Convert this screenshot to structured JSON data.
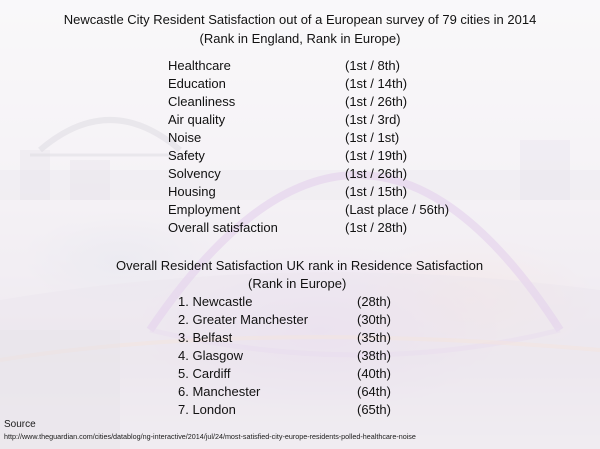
{
  "title": {
    "line1": "Newcastle City Resident Satisfaction out of a European survey of 79 cities in 2014",
    "line2": "(Rank in England, Rank in Europe)"
  },
  "metrics": [
    {
      "label": "Healthcare",
      "rank": "(1st / 8th)"
    },
    {
      "label": "Education",
      "rank": "(1st / 14th)"
    },
    {
      "label": "Cleanliness",
      "rank": "(1st / 26th)"
    },
    {
      "label": "Air quality",
      "rank": "(1st / 3rd)"
    },
    {
      "label": "Noise",
      "rank": "(1st / 1st)"
    },
    {
      "label": "Safety",
      "rank": "(1st / 19th)"
    },
    {
      "label": "Solvency",
      "rank": "(1st / 26th)"
    },
    {
      "label": "Housing",
      "rank": "(1st / 15th)"
    },
    {
      "label": "Employment",
      "rank": "(Last place / 56th)"
    },
    {
      "label": "Overall satisfaction",
      "rank": "(1st / 28th)"
    }
  ],
  "uk_section": {
    "title": "Overall Resident Satisfaction UK rank in Residence Satisfaction",
    "subtitle": "(Rank in Europe)",
    "cities": [
      {
        "label": "1. Newcastle",
        "rank": "(28th)"
      },
      {
        "label": "2. Greater Manchester",
        "rank": "(30th)"
      },
      {
        "label": "3. Belfast",
        "rank": "(35th)"
      },
      {
        "label": "4. Glasgow",
        "rank": "(38th)"
      },
      {
        "label": "5. Cardiff",
        "rank": "(40th)"
      },
      {
        "label": "6. Manchester",
        "rank": "(64th)"
      },
      {
        "label": "7. London",
        "rank": "(65th)"
      }
    ]
  },
  "source": {
    "label": "Source",
    "url": "http://www.theguardian.com/cities/datablog/ng-interactive/2014/jul/24/most-satisfied-city-europe-residents-polled-healthcare-noise"
  },
  "colors": {
    "text": "#111111",
    "bridge_arch": "#c9a3d8",
    "background": "#e9e4ea"
  }
}
